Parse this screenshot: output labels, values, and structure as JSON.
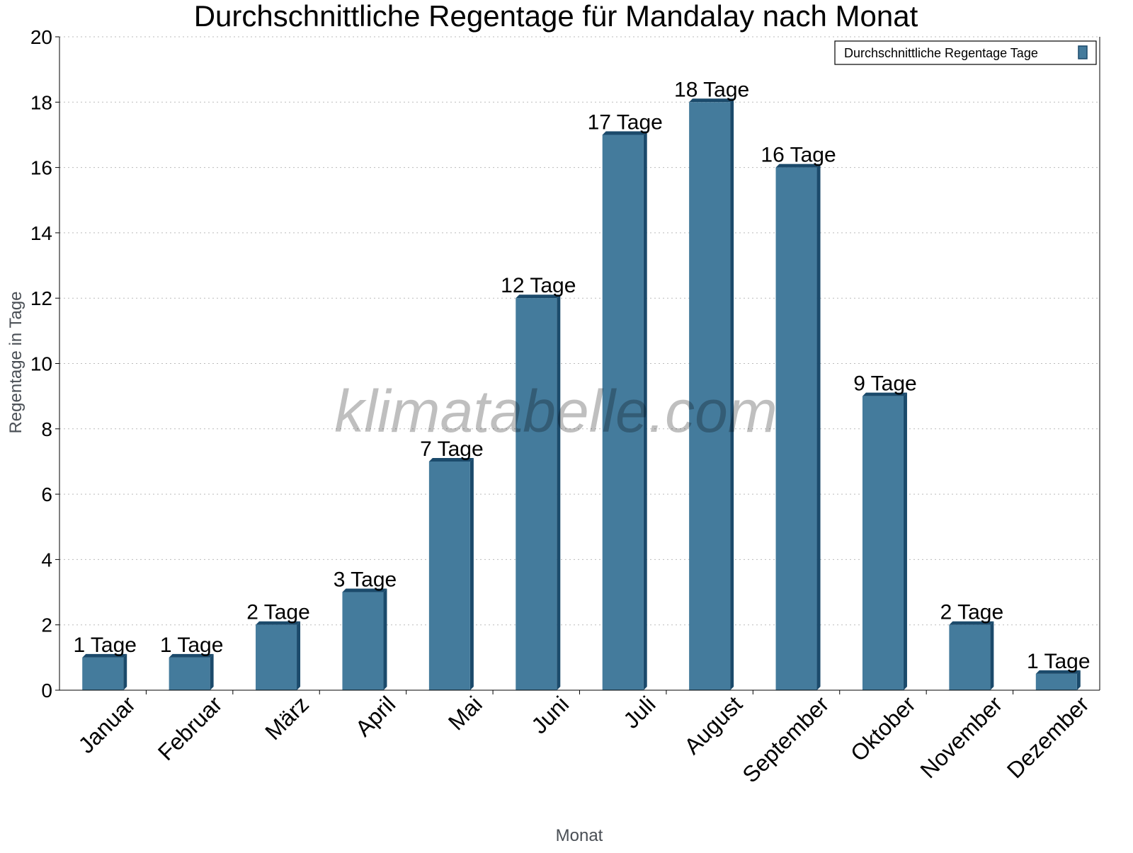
{
  "chart_data": {
    "type": "bar",
    "title": "Durchschnittliche Regentage für Mandalay nach Monat",
    "xlabel": "Monat",
    "ylabel": "Regentage in Tage",
    "ylim": [
      0,
      20
    ],
    "yticks": [
      0,
      2,
      4,
      6,
      8,
      10,
      12,
      14,
      16,
      18,
      20
    ],
    "grid": "horizontal dotted",
    "legend_placement": "top-right",
    "categories": [
      "Januar",
      "Februar",
      "März",
      "April",
      "Mai",
      "Juni",
      "Juli",
      "August",
      "September",
      "Oktober",
      "November",
      "Dezember"
    ],
    "series": [
      {
        "name": "Durchschnittliche Regentage Tage",
        "values": [
          1,
          1,
          2,
          3,
          7,
          12,
          17,
          18,
          16,
          9,
          2,
          0.5
        ],
        "labels": [
          "1 Tage",
          "1 Tage",
          "2 Tage",
          "3 Tage",
          "7 Tage",
          "12 Tage",
          "17 Tage",
          "18 Tage",
          "16 Tage",
          "9 Tage",
          "2 Tage",
          "1 Tage"
        ],
        "color": "#447b9c",
        "shade_color": "#1b4a6b"
      }
    ],
    "watermark": "klimatabelle.com"
  }
}
